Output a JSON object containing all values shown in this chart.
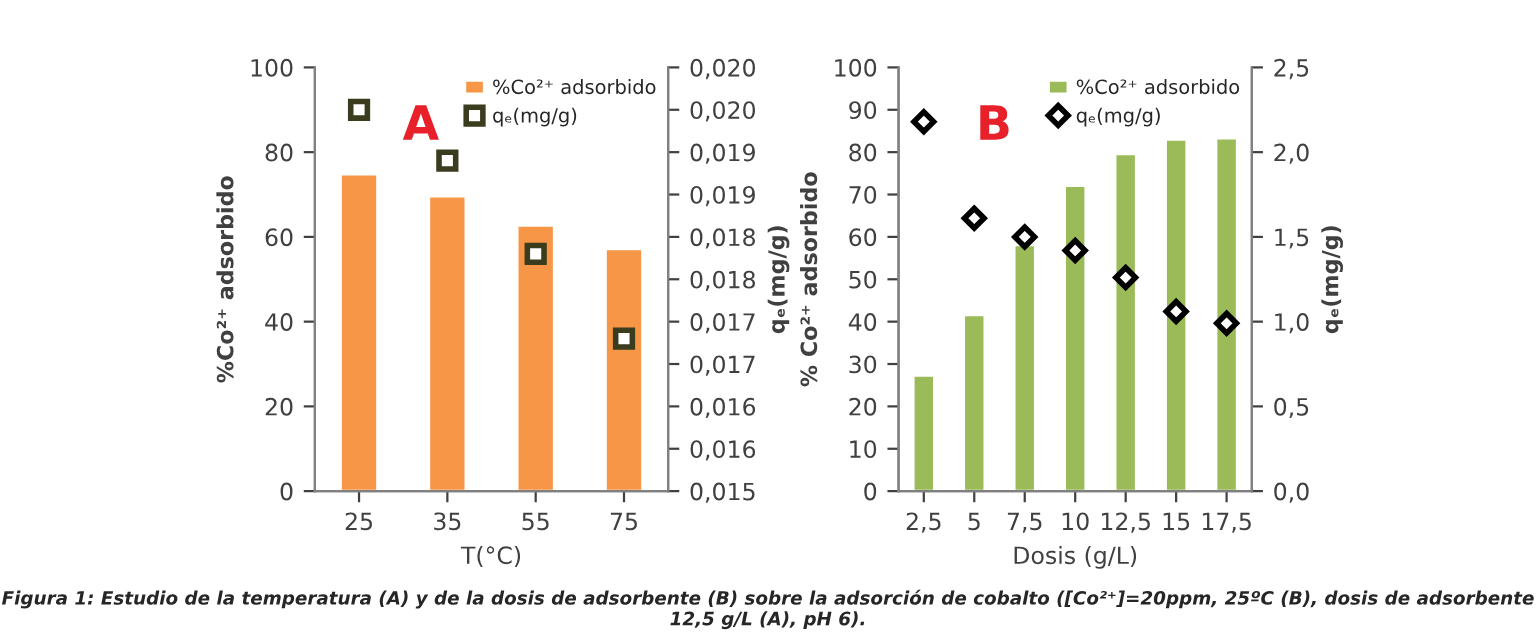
{
  "chart_data": [
    {
      "type": "bar",
      "categories": [
        "25",
        "35",
        "55",
        "75"
      ],
      "xlabel": "T(°C)",
      "ylabel": "%Co²⁺ adsorbido",
      "y2label": "qₑ(mg/g)",
      "series": [
        {
          "name": "%Co²⁺ adsorbido",
          "color": "#f79646",
          "values": [
            74.8,
            69.6,
            62.7,
            57.2
          ]
        },
        {
          "name": "qₑ(mg/g)",
          "type": "scatter",
          "axis": "y2",
          "marker": "square",
          "color": "#3b3b1e",
          "values": [
            0.0195,
            0.0189,
            0.0178,
            0.0168
          ]
        }
      ],
      "ylim": [
        0,
        100
      ],
      "yticks": [
        0,
        20,
        40,
        60,
        80,
        100
      ],
      "y2lim": [
        0.015,
        0.02
      ],
      "y2ticks": [
        {
          "value": 0.015,
          "label": "0,015"
        },
        {
          "value": 0.0155,
          "label": "0,016"
        },
        {
          "value": 0.016,
          "label": "0,016"
        },
        {
          "value": 0.0165,
          "label": "0,017"
        },
        {
          "value": 0.017,
          "label": "0,017"
        },
        {
          "value": 0.0175,
          "label": "0,018"
        },
        {
          "value": 0.018,
          "label": "0,018"
        },
        {
          "value": 0.0185,
          "label": "0,019"
        },
        {
          "value": 0.019,
          "label": "0,019"
        },
        {
          "value": 0.0195,
          "label": "0,020"
        },
        {
          "value": 0.02,
          "label": "0,020"
        }
      ],
      "grid": false,
      "legend": "top right",
      "annotations": [
        "A",
        "Figura 1: Estudio de la temperatura (A) y de la dosis de adsorbente (B) sobre la adsorción de cobalto ([Co²⁺]=20ppm, 25ºC (B), dosis de adsorbente 12,5 g/L (A), pH 6)."
      ]
    },
    {
      "type": "bar",
      "categories": [
        "2,5",
        "5",
        "7,5",
        "10",
        "12,5",
        "15",
        "17,5"
      ],
      "xlabel": "Dosis (g/L)",
      "ylabel": "% Co²⁺ adsorbido",
      "y2label": "qₑ(mg/g)",
      "series": [
        {
          "name": "%Co²⁺ adsorbido",
          "color": "#9bbb59",
          "values": [
            27.3,
            41.6,
            58.1,
            72.1,
            79.6,
            83.0,
            83.3
          ]
        },
        {
          "name": "qₑ(mg/g)",
          "type": "scatter",
          "axis": "y2",
          "marker": "diamond",
          "color": "#000000",
          "values": [
            2.18,
            1.61,
            1.5,
            1.42,
            1.26,
            1.06,
            0.99
          ]
        }
      ],
      "ylim": [
        0,
        100
      ],
      "yticks": [
        0,
        10,
        20,
        30,
        40,
        50,
        60,
        70,
        80,
        90,
        100
      ],
      "y2lim": [
        0,
        2.5
      ],
      "y2ticks": [
        {
          "value": 0,
          "label": "0,0"
        },
        {
          "value": 0.5,
          "label": "0,5"
        },
        {
          "value": 1.0,
          "label": "1,0"
        },
        {
          "value": 1.5,
          "label": "1,5"
        },
        {
          "value": 2.0,
          "label": "2,0"
        },
        {
          "value": 2.5,
          "label": "2,5"
        }
      ],
      "grid": false,
      "legend": "top right",
      "annotations": [
        "B"
      ]
    }
  ]
}
